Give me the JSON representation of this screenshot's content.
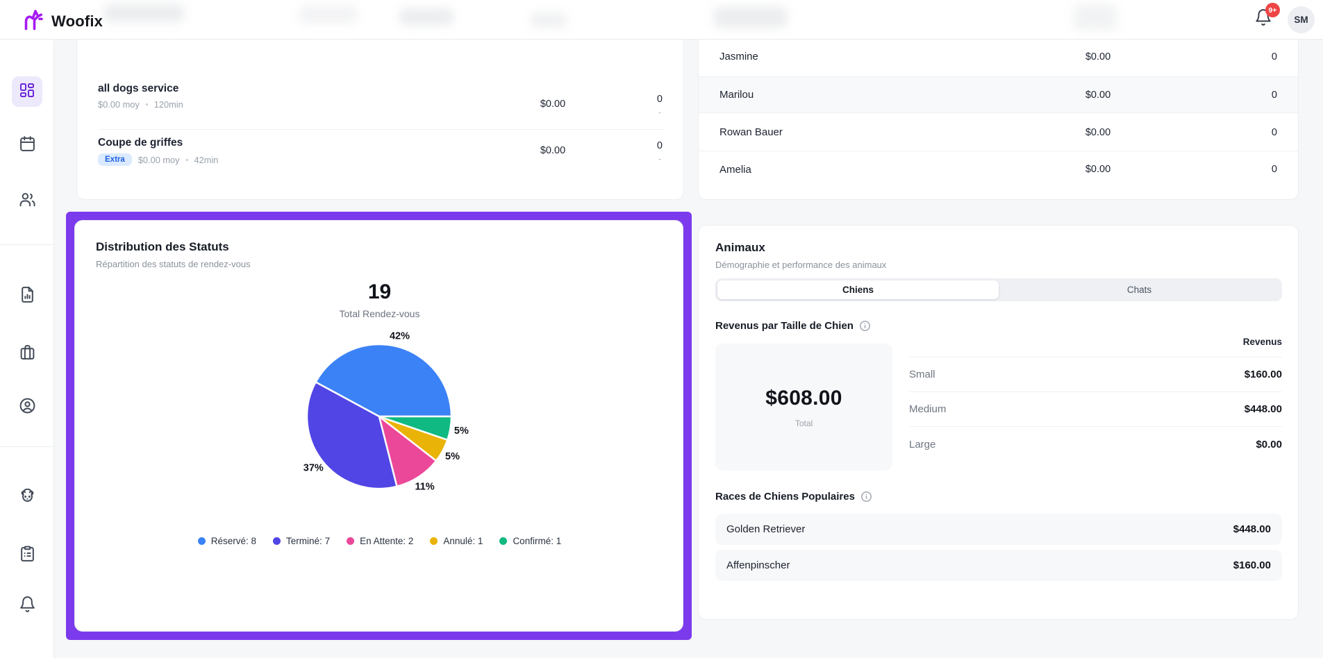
{
  "header": {
    "brand": "Woofix",
    "notification_badge": "9+",
    "avatar_initials": "SM"
  },
  "sidebar": {
    "items": [
      "dashboard",
      "calendar",
      "clients",
      "reports",
      "services",
      "account",
      "pets",
      "forms",
      "notifications"
    ],
    "active_item": "dashboard"
  },
  "services_card": {
    "rows": [
      {
        "title": "all dogs service",
        "price_meta": "$0.00 moy",
        "duration": "120min",
        "badge": "",
        "value": "$0.00",
        "count": "0",
        "sub": "-"
      },
      {
        "title": "Coupe de griffes",
        "price_meta": "$0.00 moy",
        "duration": "42min",
        "badge": "Extra",
        "value": "$0.00",
        "count": "0",
        "sub": "-"
      }
    ]
  },
  "staff_card": {
    "rows": [
      {
        "name": "Jasmine",
        "value": "$0.00",
        "count": "0"
      },
      {
        "name": "Marilou",
        "value": "$0.00",
        "count": "0"
      },
      {
        "name": "Rowan Bauer",
        "value": "$0.00",
        "count": "0"
      },
      {
        "name": "Amelia",
        "value": "$0.00",
        "count": "0"
      }
    ]
  },
  "status_card": {
    "title": "Distribution des Statuts",
    "subtitle": "Répartition des statuts de rendez-vous",
    "total_value": "19",
    "total_label": "Total Rendez-vous"
  },
  "chart_data": {
    "type": "pie",
    "title": "Distribution des Statuts",
    "categories": [
      "Réservé",
      "Terminé",
      "En Attente",
      "Annulé",
      "Confirmé"
    ],
    "values": [
      8,
      7,
      2,
      1,
      1
    ],
    "total": 19,
    "percent_labels": [
      "42%",
      "37%",
      "11%",
      "5%",
      "5%"
    ],
    "colors": [
      "#3b82f6",
      "#5145e5",
      "#ec4899",
      "#eab308",
      "#10b981"
    ],
    "legend": [
      "Réservé: 8",
      "Terminé: 7",
      "En Attente: 2",
      "Annulé: 1",
      "Confirmé: 1"
    ],
    "legend_position": "bottom",
    "start_angle_deg": 0,
    "direction": "counterclockwise"
  },
  "animals_card": {
    "title": "Animaux",
    "subtitle": "Démographie et performance des animaux",
    "tabs": [
      {
        "label": "Chiens",
        "active": true
      },
      {
        "label": "Chats",
        "active": false
      }
    ],
    "revenue_section": {
      "title": "Revenus par Taille de Chien",
      "total_amount": "$608.00",
      "total_label": "Total",
      "column_header": "Revenus",
      "rows": [
        {
          "label": "Small",
          "value": "$160.00"
        },
        {
          "label": "Medium",
          "value": "$448.00"
        },
        {
          "label": "Large",
          "value": "$0.00"
        }
      ]
    },
    "breeds_section": {
      "title": "Races de Chiens Populaires",
      "rows": [
        {
          "name": "Golden Retriever",
          "value": "$448.00"
        },
        {
          "name": "Affenpinscher",
          "value": "$160.00"
        }
      ]
    }
  }
}
